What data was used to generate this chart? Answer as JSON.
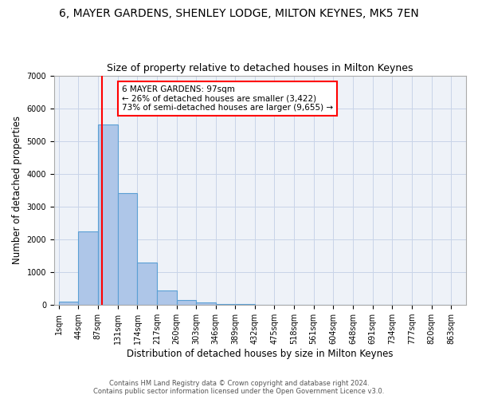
{
  "title1": "6, MAYER GARDENS, SHENLEY LODGE, MILTON KEYNES, MK5 7EN",
  "title2": "Size of property relative to detached houses in Milton Keynes",
  "xlabel": "Distribution of detached houses by size in Milton Keynes",
  "ylabel": "Number of detached properties",
  "bin_edges": [
    1,
    44,
    87,
    131,
    174,
    217,
    260,
    303,
    346,
    389,
    432,
    475,
    518,
    561,
    604,
    648,
    691,
    734,
    777,
    820,
    863
  ],
  "bin_counts": [
    100,
    2250,
    5500,
    3400,
    1300,
    450,
    150,
    80,
    40,
    20,
    10,
    5,
    3,
    2,
    1,
    1,
    1,
    1,
    1,
    1
  ],
  "bar_facecolor": "#aec6e8",
  "bar_edgecolor": "#5a9fd4",
  "property_size": 97,
  "vline_color": "red",
  "annotation_text": "6 MAYER GARDENS: 97sqm\n← 26% of detached houses are smaller (3,422)\n73% of semi-detached houses are larger (9,655) →",
  "annotation_boxcolor": "white",
  "annotation_boxedgecolor": "red",
  "ylim": [
    0,
    7000
  ],
  "yticks": [
    0,
    1000,
    2000,
    3000,
    4000,
    5000,
    6000,
    7000
  ],
  "grid_color": "#c8d4e8",
  "bg_color": "#eef2f8",
  "footer1": "Contains HM Land Registry data © Crown copyright and database right 2024.",
  "footer2": "Contains public sector information licensed under the Open Government Licence v3.0.",
  "title1_fontsize": 10,
  "title2_fontsize": 9,
  "xlabel_fontsize": 8.5,
  "ylabel_fontsize": 8.5,
  "tick_fontsize": 7,
  "annot_fontsize": 7.5
}
